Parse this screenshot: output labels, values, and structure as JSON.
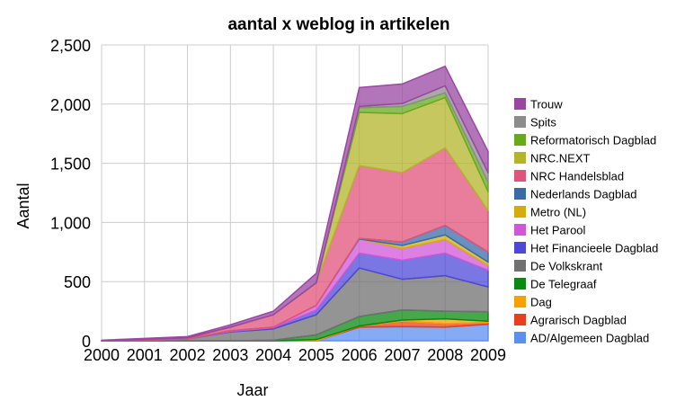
{
  "chart_data": {
    "type": "area",
    "stacked": true,
    "title": "aantal x weblog in artikelen",
    "xlabel": "Jaar",
    "ylabel": "Aantal",
    "x": [
      "2000",
      "2001",
      "2002",
      "2003",
      "2004",
      "2005",
      "2006",
      "2007",
      "2008",
      "2009"
    ],
    "ylim": [
      0,
      2500
    ],
    "yticks": [
      0,
      500,
      1000,
      1500,
      2000,
      2500
    ],
    "ytick_labels": [
      "0",
      "500",
      "1,000",
      "1,500",
      "2,000",
      "2,500"
    ],
    "grid": true,
    "legend_position": "right",
    "series": [
      {
        "name": "AD/Algemeen Dagblad",
        "color": "#5b8ff0",
        "values": [
          0,
          0,
          0,
          0,
          0,
          0,
          115,
          120,
          115,
          140
        ]
      },
      {
        "name": "Agrarisch Dagblad",
        "color": "#e8401c",
        "values": [
          0,
          0,
          0,
          0,
          0,
          0,
          10,
          45,
          30,
          15
        ]
      },
      {
        "name": "Dag",
        "color": "#f8a000",
        "values": [
          0,
          0,
          0,
          0,
          0,
          10,
          0,
          10,
          40,
          10
        ]
      },
      {
        "name": "De Telegraaf",
        "color": "#0a8a12",
        "values": [
          0,
          0,
          0,
          0,
          5,
          40,
          80,
          85,
          65,
          80
        ]
      },
      {
        "name": "De Volkskrant",
        "color": "#707070",
        "values": [
          0,
          5,
          15,
          75,
          95,
          170,
          410,
          260,
          300,
          210
        ]
      },
      {
        "name": "Het Financieele Dagblad",
        "color": "#4d48d8",
        "values": [
          0,
          0,
          0,
          5,
          10,
          40,
          125,
          160,
          190,
          140
        ]
      },
      {
        "name": "Het Parool",
        "color": "#d057d8",
        "values": [
          0,
          0,
          0,
          5,
          5,
          40,
          120,
          100,
          115,
          40
        ]
      },
      {
        "name": "Metro (NL)",
        "color": "#d4ac0d",
        "values": [
          0,
          0,
          0,
          0,
          0,
          0,
          0,
          25,
          40,
          30
        ]
      },
      {
        "name": "Nederlands Dagblad",
        "color": "#3a6aa8",
        "values": [
          0,
          0,
          0,
          0,
          0,
          0,
          5,
          30,
          80,
          85
        ]
      },
      {
        "name": "NRC Handelsblad",
        "color": "#e0537a",
        "values": [
          0,
          5,
          10,
          30,
          105,
          190,
          615,
          585,
          655,
          350
        ]
      },
      {
        "name": "NRC.NEXT",
        "color": "#b4b42a",
        "values": [
          0,
          0,
          0,
          0,
          0,
          0,
          450,
          500,
          425,
          160
        ]
      },
      {
        "name": "Reformatorisch Dagblad",
        "color": "#66aa1e",
        "values": [
          0,
          0,
          0,
          0,
          0,
          0,
          40,
          60,
          40,
          80
        ]
      },
      {
        "name": "Spits",
        "color": "#8c8c8c",
        "values": [
          0,
          0,
          0,
          0,
          0,
          0,
          10,
          25,
          60,
          80
        ]
      },
      {
        "name": "Trouw",
        "color": "#9a47a3",
        "values": [
          5,
          10,
          10,
          20,
          30,
          80,
          160,
          165,
          165,
          180
        ]
      }
    ]
  }
}
